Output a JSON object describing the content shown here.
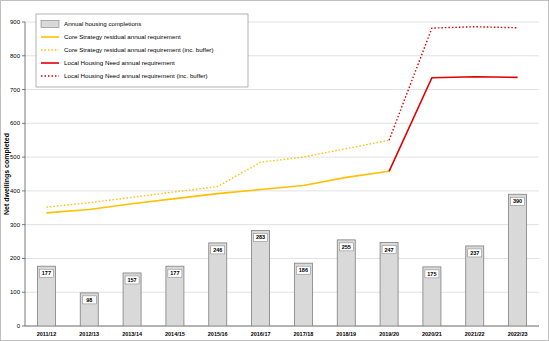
{
  "chart_data": {
    "type": "bar",
    "y_label": "Net dwellings completed",
    "categories": [
      "2011/12",
      "2012/13",
      "2013/14",
      "2014/15",
      "2015/16",
      "2016/17",
      "2017/18",
      "2018/19",
      "2019/20",
      "2020/21",
      "2021/22",
      "2022/23"
    ],
    "series": [
      {
        "name": "Annual housing completions",
        "type": "bar",
        "color": "#d9d9d9",
        "data_labels": true,
        "values": [
          177,
          98,
          157,
          177,
          246,
          283,
          186,
          255,
          247,
          175,
          237,
          390
        ]
      },
      {
        "name": "Core Strategy residual annual requirement",
        "type": "line",
        "color": "#ffc000",
        "line_style": "solid",
        "values": [
          335,
          345,
          362,
          377,
          392,
          404,
          416,
          440,
          458,
          null,
          null,
          null
        ]
      },
      {
        "name": "Core Strategy residual annual requirement (inc. buffer)",
        "type": "line",
        "color": "#ffc000",
        "line_style": "dotted",
        "values": [
          352,
          365,
          381,
          397,
          413,
          485,
          500,
          525,
          550,
          null,
          null,
          null
        ]
      },
      {
        "name": "Local Housing Need annual requirement",
        "type": "line",
        "color": "#e00000",
        "line_style": "solid",
        "values": [
          null,
          null,
          null,
          null,
          null,
          null,
          null,
          null,
          458,
          735,
          738,
          736
        ]
      },
      {
        "name": "Local Housing Need annual requirement (inc. buffer)",
        "type": "line",
        "color": "#e00000",
        "line_style": "dotted",
        "values": [
          null,
          null,
          null,
          null,
          null,
          null,
          null,
          null,
          550,
          882,
          886,
          883
        ]
      }
    ],
    "ylim": [
      0,
      900
    ],
    "yticks": [
      0,
      100,
      200,
      300,
      400,
      500,
      600,
      700,
      800,
      900
    ],
    "grid": true,
    "legend": "top-left"
  }
}
